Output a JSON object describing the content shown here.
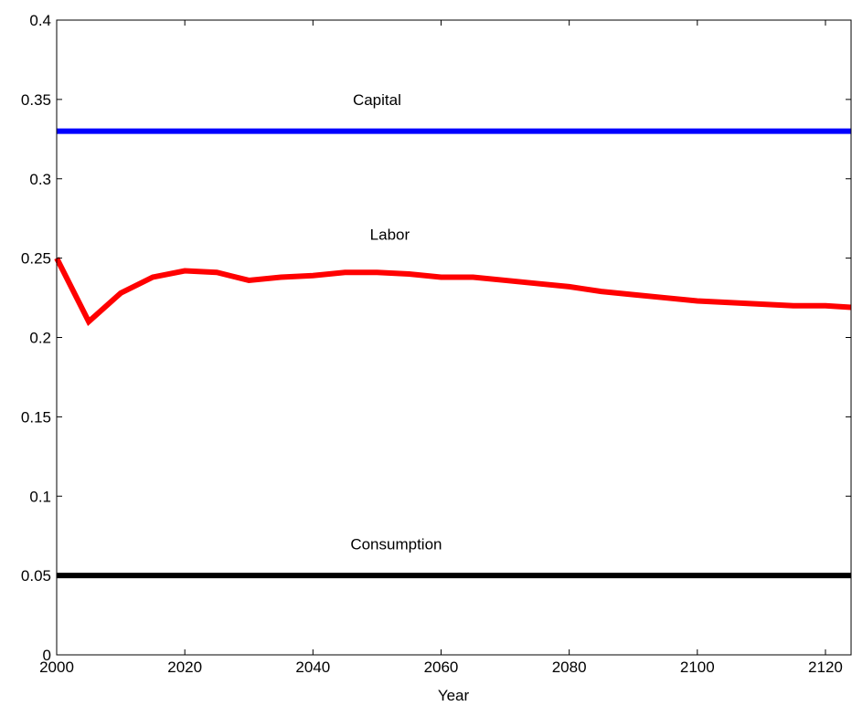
{
  "chart_data": {
    "type": "line",
    "title": "",
    "xlabel": "Year",
    "ylabel": "",
    "xlim": [
      2000,
      2124
    ],
    "ylim": [
      0,
      0.4
    ],
    "xticks": [
      2000,
      2020,
      2040,
      2060,
      2080,
      2100,
      2120
    ],
    "yticks": [
      0,
      0.05,
      0.1,
      0.15,
      0.2,
      0.25,
      0.3,
      0.35,
      0.4
    ],
    "ytick_labels": [
      "0",
      "0.05",
      "0.1",
      "0.15",
      "0.2",
      "0.25",
      "0.3",
      "0.35",
      "0.4"
    ],
    "grid": false,
    "series": [
      {
        "name": "Capital",
        "color": "#0000ff",
        "x": [
          2000,
          2124
        ],
        "y": [
          0.33,
          0.33
        ]
      },
      {
        "name": "Labor",
        "color": "#ff0000",
        "x": [
          2000,
          2005,
          2010,
          2015,
          2020,
          2025,
          2030,
          2035,
          2040,
          2045,
          2050,
          2055,
          2060,
          2065,
          2070,
          2075,
          2080,
          2085,
          2090,
          2095,
          2100,
          2105,
          2110,
          2115,
          2120,
          2124
        ],
        "y": [
          0.25,
          0.21,
          0.228,
          0.238,
          0.242,
          0.241,
          0.236,
          0.238,
          0.239,
          0.241,
          0.241,
          0.24,
          0.238,
          0.238,
          0.236,
          0.234,
          0.232,
          0.229,
          0.227,
          0.225,
          0.223,
          0.222,
          0.221,
          0.22,
          0.22,
          0.219
        ]
      },
      {
        "name": "Consumption",
        "color": "#000000",
        "x": [
          2000,
          2124
        ],
        "y": [
          0.05,
          0.05
        ]
      }
    ],
    "annotations": [
      {
        "text": "Capital",
        "x": 2050,
        "y": 0.35
      },
      {
        "text": "Labor",
        "x": 2052,
        "y": 0.265
      },
      {
        "text": "Consumption",
        "x": 2053,
        "y": 0.07
      }
    ]
  }
}
